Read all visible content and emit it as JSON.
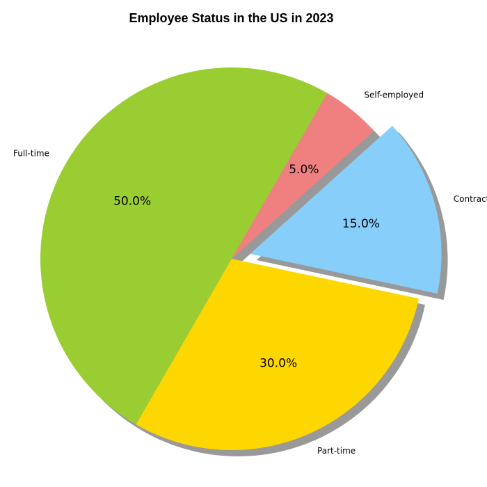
{
  "chart_data": {
    "type": "pie",
    "title": "Employee Status in the US in 2023",
    "start_angle_deg": 60,
    "shadow": true,
    "slices": [
      {
        "label": "Full-time",
        "value": 50,
        "pct_label": "50.0%",
        "color": "#9acd32",
        "explode": false
      },
      {
        "label": "Part-time",
        "value": 30,
        "pct_label": "30.0%",
        "color": "#ffd700",
        "explode": false
      },
      {
        "label": "Contract",
        "value": 15,
        "pct_label": "15.0%",
        "color": "#87cefa",
        "explode": true
      },
      {
        "label": "Self-employed",
        "value": 5,
        "pct_label": "5.0%",
        "color": "#f08080",
        "explode": false
      }
    ]
  }
}
